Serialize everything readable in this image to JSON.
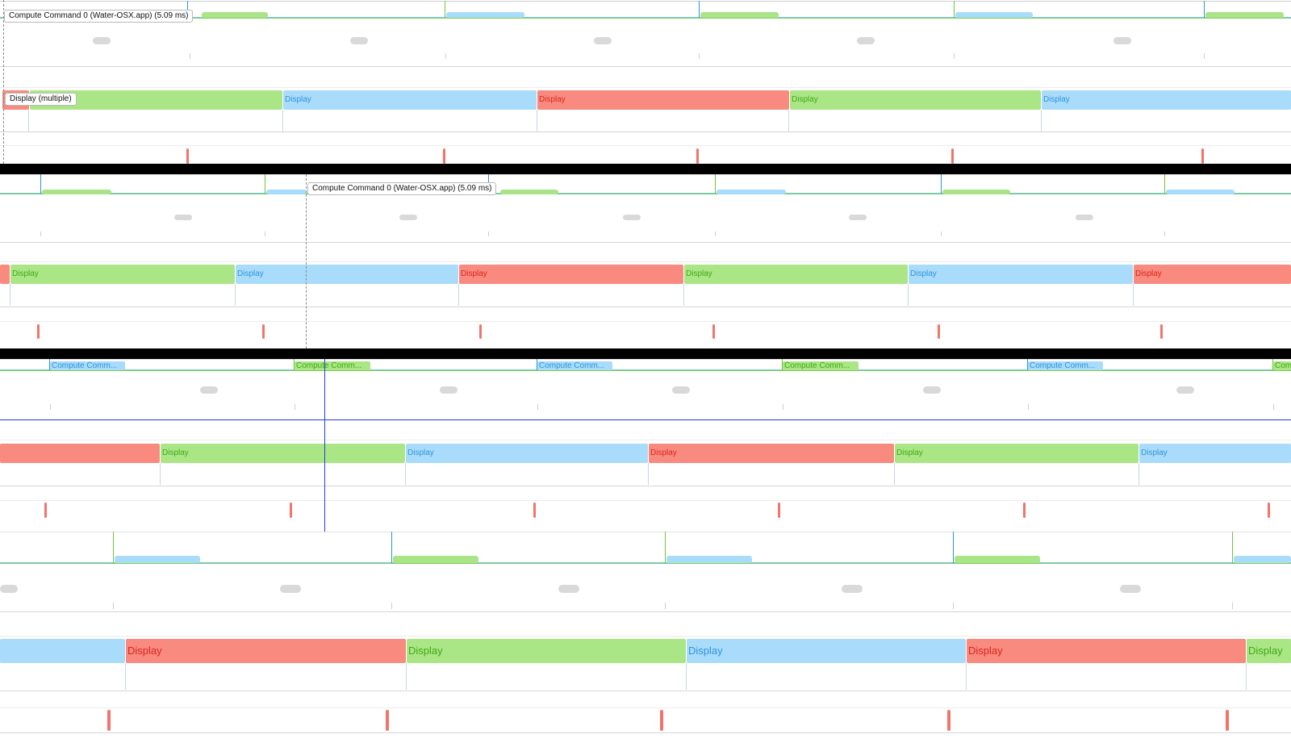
{
  "colors": {
    "green": "#abe686",
    "blue": "#a9dcfb",
    "red": "#f98a7f",
    "green_text": "#3fa814",
    "blue_text": "#2f93d8",
    "red_text": "#d9261c",
    "separator": "#000000",
    "cursor": "#1f3ddb"
  },
  "panels": [
    {
      "tooltips": [
        {
          "name": "compute-command-tooltip",
          "text": "Compute Command 0 (Water-OSX.app) (5.09 ms)"
        },
        {
          "name": "display-multiple-tooltip",
          "text": "Display (multiple)"
        }
      ],
      "display_labels": [
        "",
        "",
        "Display",
        "Display",
        "Display",
        "Display"
      ]
    },
    {
      "tooltips": [
        {
          "name": "compute-command-tooltip",
          "text": "Compute Command 0 (Water-OSX.app) (5.09 ms)"
        }
      ],
      "display_labels": [
        "",
        "Display",
        "Display",
        "Display",
        "Display",
        "Display",
        "Display"
      ]
    },
    {
      "compute_labels": [
        "Compute Comm...",
        "Compute Comm...",
        "Compute Comm...",
        "Compute Comm...",
        "Compute Comm...",
        "Com"
      ],
      "display_labels": [
        "",
        "Display",
        "Display",
        "Display",
        "Display",
        "Display"
      ]
    },
    {
      "display_labels": [
        "",
        "Display",
        "Display",
        "Display",
        "Display",
        "Display"
      ]
    }
  ]
}
